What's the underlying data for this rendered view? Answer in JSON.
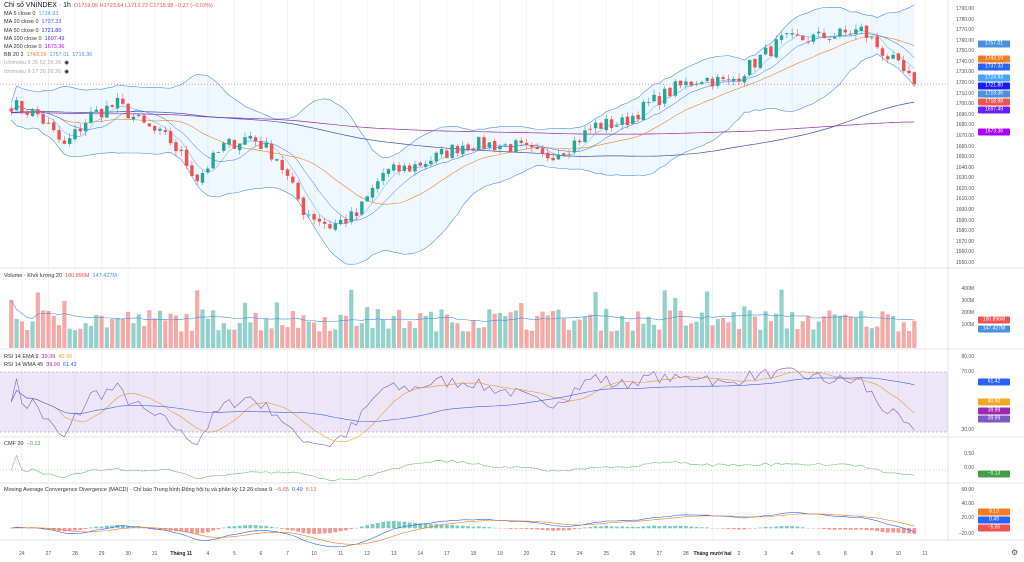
{
  "header": {
    "symbol": "Chỉ số VNINDEX · 1h",
    "ohlc": "O1719.05 H1723.64 L1713.23 C1718.98 −0.27 (−0.02%)"
  },
  "indicators": {
    "ma5": {
      "label": "MA 5 close 0",
      "value": "1724.93"
    },
    "ma10": {
      "label": "MA 10 close 0",
      "value": "1737.33"
    },
    "ma50": {
      "label": "MA 50 close 0",
      "value": "1721.80"
    },
    "ma100": {
      "label": "MA 100 close 0",
      "value": "1697.49"
    },
    "ma200": {
      "label": "MA 200 close 0",
      "value": "1673.36"
    },
    "bb": {
      "label": "BB 20 2",
      "basis": "1743.19",
      "upper": "1757.01",
      "lower": "1719.36"
    },
    "ichimoku1": {
      "label": "Ichimoku 9 26 52 26 26"
    },
    "ichimoku2": {
      "label": "Ichimoku 9 17 26 26 26"
    },
    "volume": {
      "label": "Volume · Khối lượng 20",
      "v1": "180.896M",
      "v2": "147.427M"
    },
    "rsi1": {
      "label": "RSI 14 EMA 9",
      "v1": "39.99",
      "v2": "40.90"
    },
    "rsi2": {
      "label": "RSI 14 WMA 45",
      "v1": "39.99",
      "v2": "61.42"
    },
    "cmf": {
      "label": "CMF 20",
      "value": "−0.13"
    },
    "macd": {
      "label": "Moving Average Convergence Divergence (MACD) · Chỉ báo Trung bình Động hội tụ và phân kỳ 12 26 close 9",
      "v1": "−5.65",
      "v2": "0.49",
      "v3": "8.13"
    }
  },
  "price_axis": [
    "1790.00",
    "1780.00",
    "1770.00",
    "1760.00",
    "1750.00",
    "1740.00",
    "1730.00",
    "1720.00",
    "1710.00",
    "1700.00",
    "1690.00",
    "1680.00",
    "1670.00",
    "1660.00",
    "1650.00",
    "1640.00",
    "1630.00",
    "1620.00",
    "1610.00",
    "1600.00",
    "1590.00",
    "1580.00",
    "1570.00",
    "1560.00",
    "1550.00"
  ],
  "price_badges": [
    {
      "value": "1757.01",
      "color": "#4a90e2"
    },
    {
      "value": "1743.19",
      "color": "#f57c20"
    },
    {
      "value": "1737.33",
      "color": "#2962ff"
    },
    {
      "value": "1724.93",
      "color": "#42a5f5"
    },
    {
      "value": "1721.80",
      "color": "#1a1aff"
    },
    {
      "value": "1719.36",
      "color": "#4a90e2"
    },
    {
      "value": "1718.98",
      "color": "#ef5350"
    },
    {
      "value": "1697.49",
      "color": "#651fff"
    },
    {
      "value": "1673.36",
      "color": "#aa00ff"
    }
  ],
  "volume_axis": [
    "400M",
    "300M",
    "200M",
    "100M"
  ],
  "rsi_axis": [
    "80.00",
    "70.00",
    "30.00"
  ],
  "rsi_badges": [
    {
      "value": "61.42",
      "color": "#2962ff"
    },
    {
      "value": "40.90",
      "color": "#f5a623"
    },
    {
      "value": "39.99",
      "color": "#9c27b0"
    },
    {
      "value": "39.99",
      "color": "#7e57c2"
    }
  ],
  "cmf_axis": [
    "0.50",
    "0.00"
  ],
  "cmf_badge": {
    "value": "−0.13",
    "color": "#43a047"
  },
  "macd_axis": [
    "60.00",
    "40.00",
    "20.00",
    "−20.00"
  ],
  "macd_badges": [
    {
      "value": "8.13",
      "color": "#f57c20"
    },
    {
      "value": "0.49",
      "color": "#2962ff"
    },
    {
      "value": "−5.65",
      "color": "#ef5350"
    }
  ],
  "time_axis": [
    {
      "label": "24"
    },
    {
      "label": "27"
    },
    {
      "label": "28"
    },
    {
      "label": "29"
    },
    {
      "label": "30"
    },
    {
      "label": "31"
    },
    {
      "label": "Tháng 11",
      "bold": true
    },
    {
      "label": "4"
    },
    {
      "label": "5"
    },
    {
      "label": "6"
    },
    {
      "label": "7"
    },
    {
      "label": "10"
    },
    {
      "label": "11"
    },
    {
      "label": "12"
    },
    {
      "label": "13"
    },
    {
      "label": "14"
    },
    {
      "label": "17"
    },
    {
      "label": "18"
    },
    {
      "label": "19"
    },
    {
      "label": "20"
    },
    {
      "label": "21"
    },
    {
      "label": "24"
    },
    {
      "label": "25"
    },
    {
      "label": "26"
    },
    {
      "label": "27"
    },
    {
      "label": "28"
    },
    {
      "label": "Tháng mười hai",
      "bold": true
    },
    {
      "label": "2"
    },
    {
      "label": "3"
    },
    {
      "label": "4"
    },
    {
      "label": "5"
    },
    {
      "label": "8"
    },
    {
      "label": "9"
    },
    {
      "label": "10"
    },
    {
      "label": "11"
    }
  ],
  "chart_data": {
    "type": "candlestick",
    "title": "Chỉ số VNINDEX · 1h",
    "ylim": [
      1550,
      1790
    ],
    "day_closes_approx": [
      1700,
      1690,
      1660,
      1690,
      1700,
      1680,
      1665,
      1630,
      1660,
      1670,
      1650,
      1600,
      1585,
      1595,
      1635,
      1640,
      1650,
      1662,
      1662,
      1660,
      1650,
      1660,
      1680,
      1682,
      1700,
      1715,
      1725,
      1720,
      1740,
      1760,
      1762,
      1765,
      1770,
      1745,
      1719
    ],
    "last": {
      "open": 1719.05,
      "high": 1723.64,
      "low": 1713.23,
      "close": 1718.98,
      "change": -0.27,
      "change_pct": -0.02
    },
    "colors": {
      "up": "#26a69a",
      "down": "#ef5350",
      "ma5": "#42a5f5",
      "ma10": "#2962ff",
      "ma50": "#f57c20",
      "ma100": "#3f51b5",
      "ma200": "#9c27b0",
      "bb": "#4a90e2"
    }
  }
}
